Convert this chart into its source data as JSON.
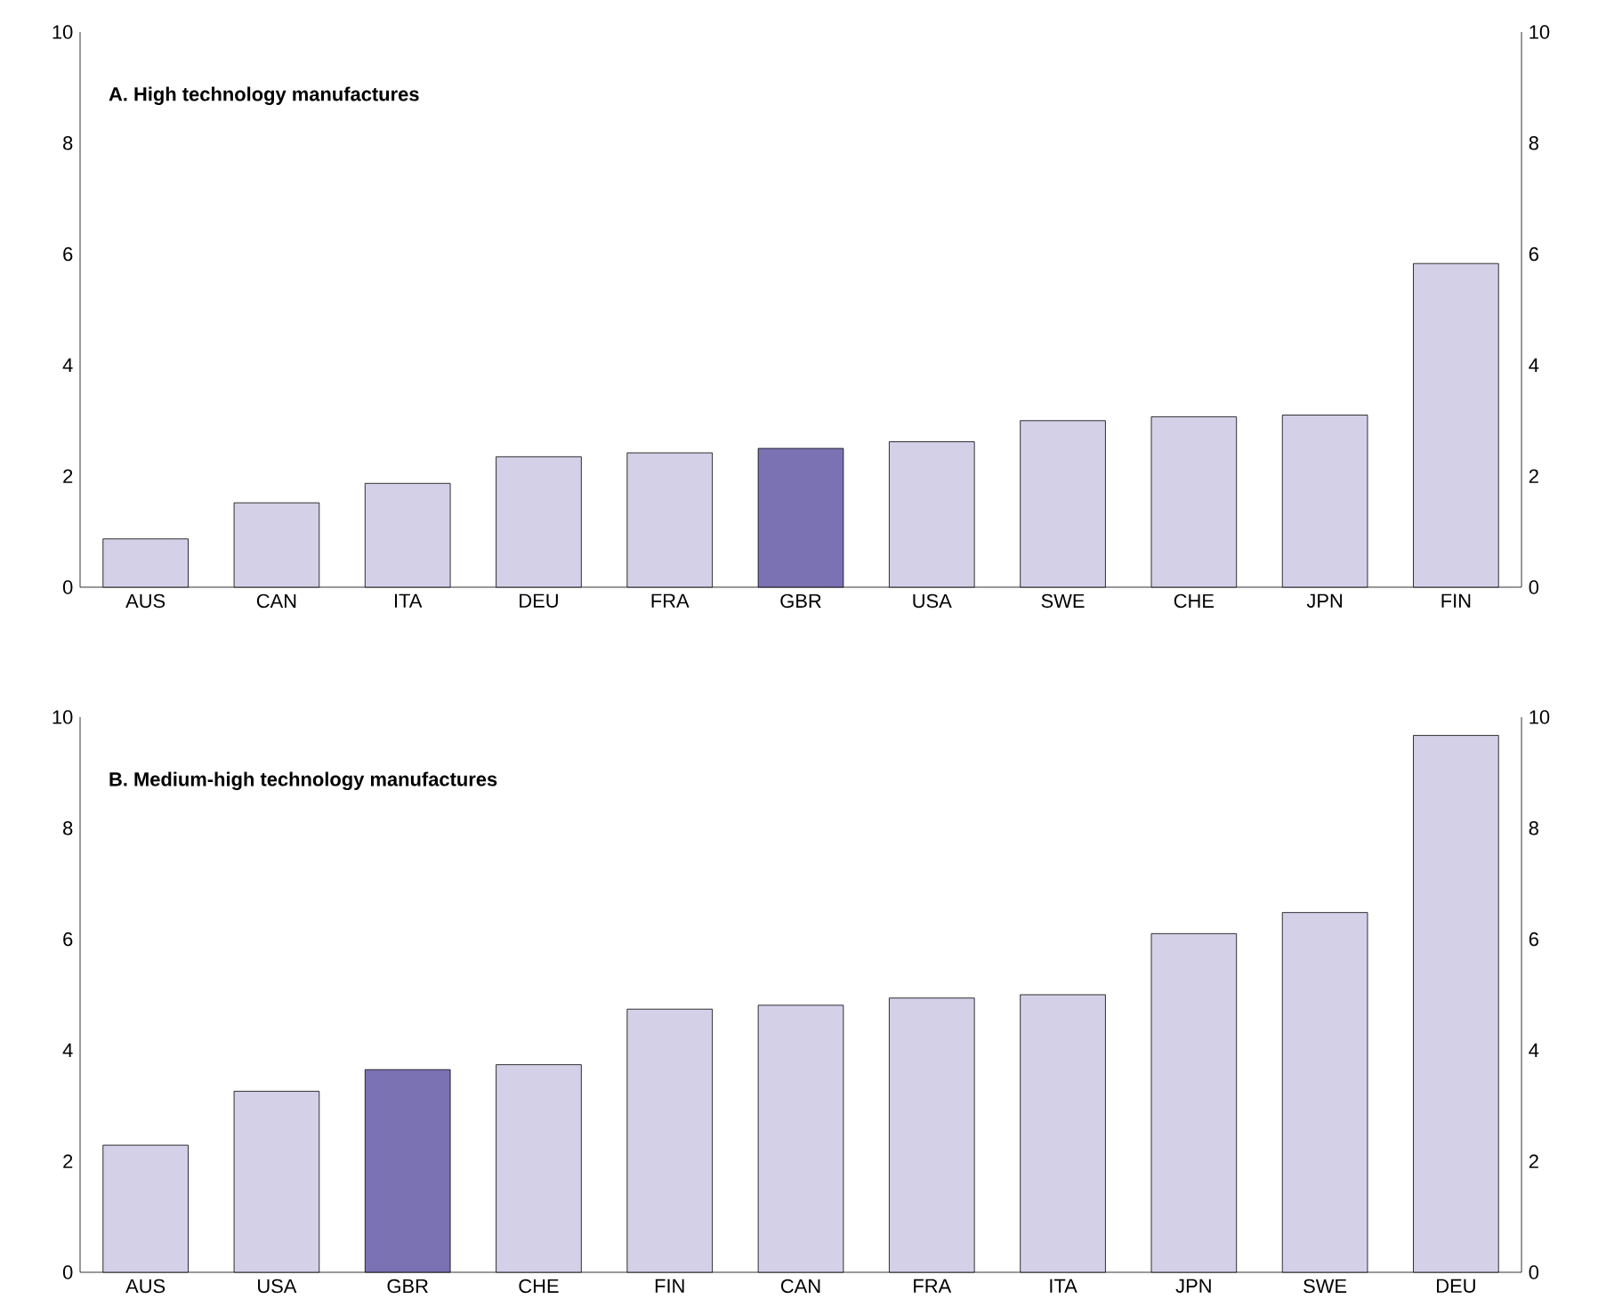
{
  "chart_data": [
    {
      "type": "bar",
      "title": "A. High technology manufactures",
      "categories": [
        "AUS",
        "CAN",
        "ITA",
        "DEU",
        "FRA",
        "GBR",
        "USA",
        "SWE",
        "CHE",
        "JPN",
        "FIN"
      ],
      "values": [
        0.87,
        1.52,
        1.87,
        2.35,
        2.42,
        2.5,
        2.62,
        3.0,
        3.07,
        3.1,
        5.83
      ],
      "colors": [
        "#d4d0e8",
        "#d4d0e8",
        "#d4d0e8",
        "#d4d0e8",
        "#d4d0e8",
        "#7b72b4",
        "#d4d0e8",
        "#d4d0e8",
        "#d4d0e8",
        "#d4d0e8",
        "#d4d0e8"
      ],
      "ylim": [
        0,
        10
      ],
      "yticks": [
        0,
        2,
        4,
        6,
        8,
        10
      ],
      "y2lim": [
        0,
        10
      ],
      "y2ticks": [
        0,
        2,
        4,
        6,
        8,
        10
      ],
      "grid": false
    },
    {
      "type": "bar",
      "title": "B. Medium-high technology manufactures",
      "categories": [
        "AUS",
        "USA",
        "GBR",
        "CHE",
        "FIN",
        "CAN",
        "FRA",
        "ITA",
        "JPN",
        "SWE",
        "DEU"
      ],
      "values": [
        2.29,
        3.26,
        3.65,
        3.74,
        4.74,
        4.81,
        4.94,
        5.0,
        6.1,
        6.48,
        9.67
      ],
      "colors": [
        "#d4d0e8",
        "#d4d0e8",
        "#7b72b4",
        "#d4d0e8",
        "#d4d0e8",
        "#d4d0e8",
        "#d4d0e8",
        "#d4d0e8",
        "#d4d0e8",
        "#d4d0e8",
        "#d4d0e8"
      ],
      "ylim": [
        0,
        10
      ],
      "yticks": [
        0,
        2,
        4,
        6,
        8,
        10
      ],
      "y2lim": [
        0,
        10
      ],
      "y2ticks": [
        0,
        2,
        4,
        6,
        8,
        10
      ],
      "grid": false
    }
  ]
}
